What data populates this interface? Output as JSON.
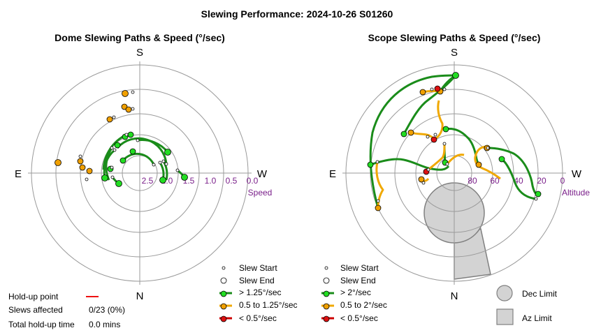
{
  "page_title": "Slewing Performance: 2024-10-26 S01260",
  "colors": {
    "fast": "#1a8c1a",
    "medium": "#f0a800",
    "slow": "#cc0000",
    "ring": "#9a9a9a",
    "axis_label": "#7a1f8a",
    "limit_fill": "#d3d3d3",
    "limit_stroke": "#808080"
  },
  "dome": {
    "title": "Dome Slewing Paths & Speed (°/sec)",
    "compass": {
      "s": "S",
      "n": "N",
      "e": "E",
      "w": "W"
    },
    "ring_labels": [
      "2.5",
      "2.0",
      "1.5",
      "1.0",
      "0.5",
      "0.0"
    ],
    "axis_name": "Speed",
    "legend": {
      "start": "Slew Start",
      "end": "Slew End",
      "fast": "> 1.25°/sec",
      "medium": "0.5 to 1.25°/sec",
      "slow": "< 0.5°/sec"
    }
  },
  "scope": {
    "title": "Scope Slewing Paths & Speed (°/sec)",
    "compass": {
      "s": "S",
      "n": "N",
      "e": "E",
      "w": "W"
    },
    "ring_labels": [
      "80",
      "60",
      "40",
      "20",
      "0"
    ],
    "axis_name": "Altitude",
    "legend": {
      "start": "Slew Start",
      "end": "Slew End",
      "fast": "> 2°/sec",
      "medium": "0.5 to 2°/sec",
      "slow": "< 0.5°/sec"
    }
  },
  "limits": {
    "dec": "Dec Limit",
    "az": "Az Limit"
  },
  "stats": {
    "holdup_label": "Hold-up point",
    "affected_label": "Slews affected",
    "affected_value": "0/23 (0%)",
    "total_label": "Total hold-up time",
    "total_value": "0.0 mins"
  }
}
